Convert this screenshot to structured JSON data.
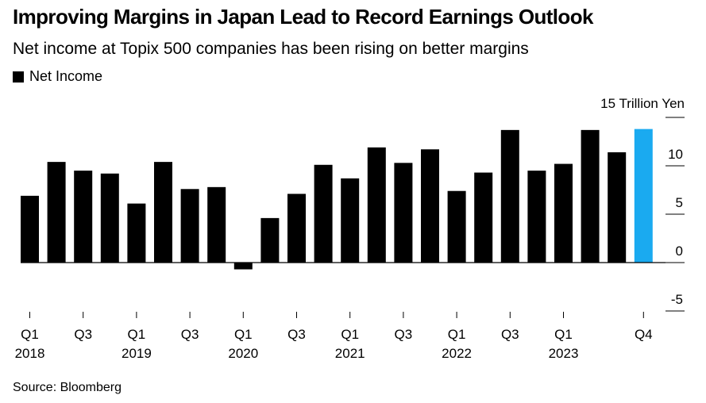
{
  "chart_data": {
    "type": "bar",
    "title": "Improving Margins in Japan Lead to Record Earnings Outlook",
    "subtitle": "Net income at Topix 500 companies has been rising on better margins",
    "legend": [
      {
        "label": "Net Income",
        "color": "#000000"
      }
    ],
    "unit_label": "15 Trillion Yen",
    "ylim": [
      -5,
      15
    ],
    "yticks": [
      {
        "value": 15,
        "label": ""
      },
      {
        "value": 10,
        "label": "10"
      },
      {
        "value": 5,
        "label": "5"
      },
      {
        "value": 0,
        "label": "0"
      },
      {
        "value": -5,
        "label": "-5"
      }
    ],
    "categories": [
      "Q1 2018",
      "Q2 2018",
      "Q3 2018",
      "Q4 2018",
      "Q1 2019",
      "Q2 2019",
      "Q3 2019",
      "Q4 2019",
      "Q1 2020",
      "Q2 2020",
      "Q3 2020",
      "Q4 2020",
      "Q1 2021",
      "Q2 2021",
      "Q3 2021",
      "Q4 2021",
      "Q1 2022",
      "Q2 2022",
      "Q3 2022",
      "Q4 2022",
      "Q1 2023",
      "Q2 2023",
      "Q3 2023",
      "Q4 2023"
    ],
    "values": [
      6.9,
      10.4,
      9.5,
      9.2,
      6.1,
      10.4,
      7.6,
      7.8,
      -0.7,
      4.6,
      7.1,
      10.1,
      8.7,
      11.9,
      10.3,
      11.7,
      7.4,
      9.3,
      13.7,
      9.5,
      10.2,
      13.7,
      11.4,
      13.8
    ],
    "highlight_index": 23,
    "colors": {
      "default": "#000000",
      "highlight": "#1aaaf0"
    },
    "xticks": [
      {
        "index": 0,
        "label": "Q1",
        "year": "2018"
      },
      {
        "index": 2,
        "label": "Q3",
        "year": ""
      },
      {
        "index": 4,
        "label": "Q1",
        "year": "2019"
      },
      {
        "index": 6,
        "label": "Q3",
        "year": ""
      },
      {
        "index": 8,
        "label": "Q1",
        "year": "2020"
      },
      {
        "index": 10,
        "label": "Q3",
        "year": ""
      },
      {
        "index": 12,
        "label": "Q1",
        "year": "2021"
      },
      {
        "index": 14,
        "label": "Q3",
        "year": ""
      },
      {
        "index": 16,
        "label": "Q1",
        "year": "2022"
      },
      {
        "index": 18,
        "label": "Q3",
        "year": ""
      },
      {
        "index": 20,
        "label": "Q1",
        "year": "2023"
      },
      {
        "index": 23,
        "label": "Q4",
        "year": ""
      }
    ],
    "source": "Source: Bloomberg"
  }
}
